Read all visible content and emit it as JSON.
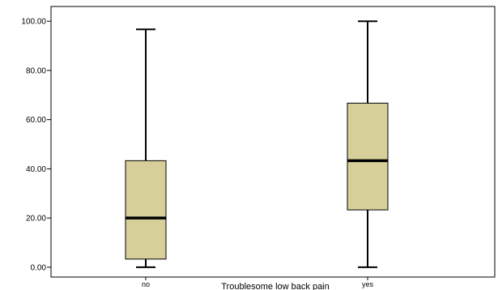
{
  "chart_data": {
    "type": "boxplot",
    "title": "",
    "xlabel": "Troublesome low back pain",
    "ylabel": "",
    "ylim": [
      -4,
      106
    ],
    "yticks": [
      0,
      20,
      40,
      60,
      80,
      100
    ],
    "ytick_labels": [
      "0.00",
      "20.00",
      "40.00",
      "60.00",
      "80.00",
      "100.00"
    ],
    "categories": [
      "no",
      "yes"
    ],
    "boxes": [
      {
        "category": "no",
        "min": 0,
        "q1": 3.3,
        "median": 20,
        "q3": 43.3,
        "max": 96.7
      },
      {
        "category": "yes",
        "min": 0,
        "q1": 23.3,
        "median": 43.3,
        "q3": 66.7,
        "max": 100
      }
    ],
    "box_color": "#d6cf9a",
    "line_color": "#000000",
    "grid": false
  }
}
